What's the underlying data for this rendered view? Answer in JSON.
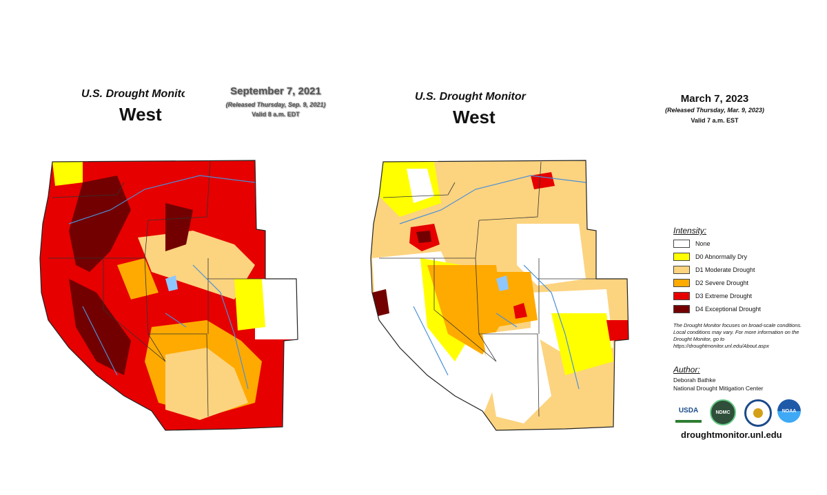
{
  "left_map": {
    "monitor_title": "U.S. Drought Monitor",
    "region": "West",
    "date": "September 7, 2021",
    "released": "(Released Thursday, Sep. 9, 2021)",
    "valid": "Valid 8 a.m. EDT"
  },
  "right_map": {
    "monitor_title": "U.S. Drought Monitor",
    "region": "West",
    "date": "March 7, 2023",
    "released": "(Released Thursday, Mar. 9, 2023)",
    "valid": "Valid 7 a.m. EST"
  },
  "legend": {
    "heading": "Intensity:",
    "items": [
      {
        "label": "None",
        "color": "#ffffff"
      },
      {
        "label": "D0 Abnormally Dry",
        "color": "#ffff00"
      },
      {
        "label": "D1 Moderate Drought",
        "color": "#fcd37f"
      },
      {
        "label": "D2 Severe Drought",
        "color": "#ffaa00"
      },
      {
        "label": "D3 Extreme Drought",
        "color": "#e60000"
      },
      {
        "label": "D4 Exceptional Drought",
        "color": "#730000"
      }
    ],
    "note": "The Drought Monitor focuses on broad-scale conditions. Local conditions may vary. For more information on the Drought Monitor, go to https://droughtmonitor.unl.edu/About.aspx"
  },
  "author": {
    "heading": "Author:",
    "name": "Deborah Bathke",
    "org": "National Drought Mitigation Center"
  },
  "logos": [
    {
      "icon": "usda-logo",
      "text": "USDA"
    },
    {
      "icon": "ndmc-logo",
      "text": "NDMC"
    },
    {
      "icon": "doc-seal-logo",
      "text": ""
    },
    {
      "icon": "noaa-logo",
      "text": "NOAA"
    }
  ],
  "website": "droughtmonitor.unl.edu"
}
